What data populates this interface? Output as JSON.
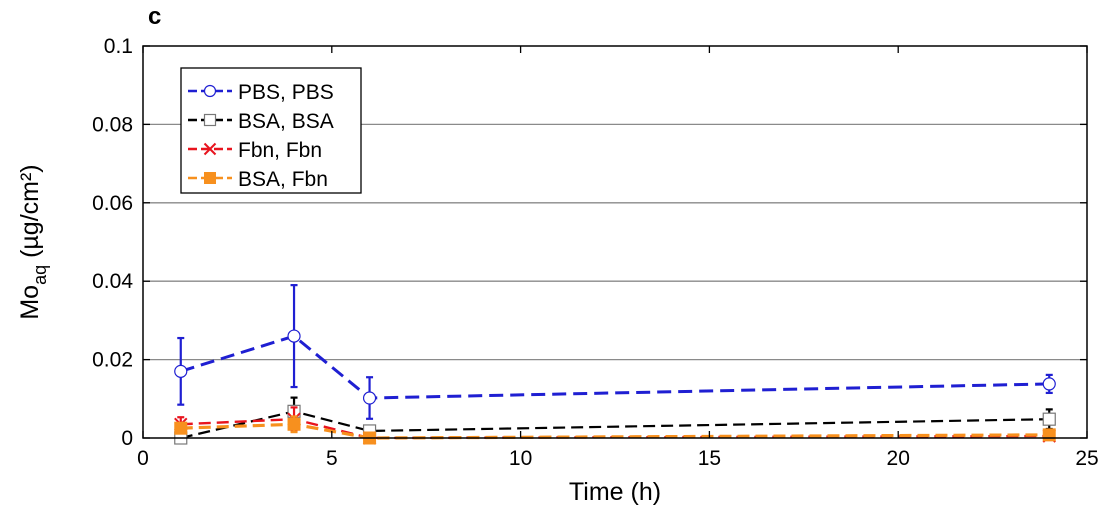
{
  "chart_data": {
    "type": "line",
    "panel_label": "c",
    "xlabel": "Time (h)",
    "ylabel": {
      "main": "Mo",
      "subscript": "aq",
      "unit": " (µg/cm²)"
    },
    "xlim": [
      0,
      25
    ],
    "ylim": [
      0,
      0.1
    ],
    "x_ticks": [
      0,
      5,
      10,
      15,
      20,
      25
    ],
    "y_ticks": [
      0,
      0.02,
      0.04,
      0.06,
      0.08,
      0.1
    ],
    "y_tick_labels": [
      "0",
      "0.02",
      "0.04",
      "0.06",
      "0.08",
      "0.1"
    ],
    "grid": "horizontal",
    "legend_position": "top-left",
    "series": [
      {
        "name": "PBS, PBS",
        "color": "#1f1fd2",
        "marker": "open-circle",
        "x": [
          1,
          4,
          6,
          24
        ],
        "y": [
          0.017,
          0.026,
          0.0102,
          0.0138
        ],
        "error": [
          0.0085,
          0.013,
          0.0053,
          0.0023
        ]
      },
      {
        "name": "BSA, BSA",
        "color": "#000000",
        "marker": "open-square",
        "x": [
          1,
          4,
          6,
          24
        ],
        "y": [
          0.0,
          0.0068,
          0.0018,
          0.0048
        ],
        "error": [
          0.0,
          0.0035,
          0.0012,
          0.0025
        ]
      },
      {
        "name": "Fbn, Fbn",
        "color": "#e8141e",
        "marker": "x",
        "x": [
          1,
          4,
          6,
          24
        ],
        "y": [
          0.0035,
          0.0048,
          0.0,
          0.0005
        ],
        "error": [
          0.0018,
          0.003,
          0.0,
          0.0004
        ]
      },
      {
        "name": "BSA, Fbn",
        "color": "#f7901e",
        "marker": "filled-square",
        "x": [
          1,
          4,
          6,
          24
        ],
        "y": [
          0.0025,
          0.0035,
          0.0,
          0.0008
        ],
        "error": [
          0.0012,
          0.002,
          0.0,
          0.0004
        ]
      }
    ]
  }
}
